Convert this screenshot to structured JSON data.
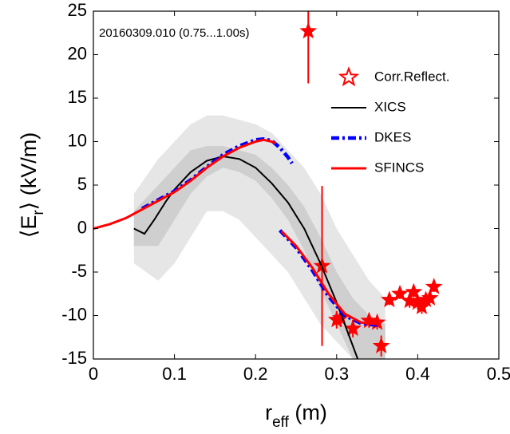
{
  "chart_data": {
    "type": "line",
    "annotation": "20160309.010 (0.75...1.00s)",
    "xlabel": [
      "r",
      "eff",
      " (m)"
    ],
    "ylabel": [
      "⟨E",
      "r",
      "⟩ (kV/m)"
    ],
    "xlim": [
      0,
      0.5
    ],
    "ylim": [
      -15,
      25
    ],
    "xticks": [
      0,
      0.1,
      0.2,
      0.3,
      0.4,
      0.5
    ],
    "yticks": [
      -15,
      -10,
      -5,
      0,
      5,
      10,
      15,
      20,
      25
    ],
    "legend": "upper right",
    "bands": [
      {
        "color": "#e6e6e6",
        "x": [
          0.05,
          0.08,
          0.1,
          0.12,
          0.14,
          0.16,
          0.18,
          0.2,
          0.22,
          0.24,
          0.26,
          0.28,
          0.3,
          0.32,
          0.34,
          0.36
        ],
        "upper": [
          4,
          8,
          10,
          12,
          13,
          13,
          12.5,
          12,
          11,
          9,
          7,
          4,
          0,
          -3,
          -6,
          -8
        ],
        "lower": [
          -4,
          -6,
          -4,
          -1,
          2,
          2,
          1,
          -1,
          -3,
          -5,
          -8,
          -11,
          -13,
          -15,
          -15,
          -15
        ]
      },
      {
        "color": "#cfcfcf",
        "x": [
          0.05,
          0.08,
          0.1,
          0.12,
          0.14,
          0.16,
          0.18,
          0.2,
          0.22,
          0.24,
          0.26,
          0.28,
          0.3,
          0.32,
          0.34,
          0.36
        ],
        "upper": [
          2,
          5,
          7,
          9,
          9.5,
          9.5,
          9,
          8.5,
          7,
          5,
          2.5,
          -1,
          -5,
          -8,
          -10,
          -11
        ],
        "lower": [
          -2,
          -2,
          1,
          4,
          6,
          7,
          6.5,
          5.5,
          3.5,
          1,
          -2.5,
          -7,
          -11,
          -15,
          -15,
          -15
        ]
      }
    ],
    "series": [
      {
        "name": "Corr.Reflect.",
        "color": "#ff0000",
        "marker": "star",
        "x": [
          0.265,
          0.282,
          0.3,
          0.305,
          0.32,
          0.34,
          0.35,
          0.355,
          0.365,
          0.378,
          0.39,
          0.395,
          0.4,
          0.405,
          0.41,
          0.415,
          0.42
        ],
        "values": [
          22.7,
          -4.3,
          -10.5,
          -10.3,
          -11.5,
          -10.6,
          -10.8,
          -13.5,
          -8.2,
          -7.5,
          -8.3,
          -7.3,
          -8.5,
          -9,
          -8.2,
          -8,
          -6.7
        ],
        "errors": [
          6,
          9.2,
          1,
          1,
          1,
          0.8,
          0.8,
          1.2,
          0.6,
          0.6,
          0.8,
          0.6,
          0.8,
          0.8,
          0.6,
          0.6,
          0.6
        ]
      },
      {
        "name": "XICS",
        "color": "#000000",
        "width": 2,
        "x": [
          0.05,
          0.063,
          0.075,
          0.09,
          0.1,
          0.12,
          0.14,
          0.16,
          0.18,
          0.2,
          0.22,
          0.24,
          0.26,
          0.28,
          0.3,
          0.31,
          0.32,
          0.326
        ],
        "values": [
          0,
          -0.6,
          1,
          3.2,
          4.5,
          6.5,
          7.8,
          8.3,
          8,
          7,
          5.2,
          3,
          0,
          -4,
          -8.5,
          -11,
          -13.5,
          -15
        ]
      },
      {
        "name": "DKES",
        "color": "#0000ff",
        "width": 4.5,
        "dash": "10 4 3 4",
        "x": [
          0.06,
          0.08,
          0.1,
          0.12,
          0.14,
          0.16,
          0.18,
          0.2,
          0.21,
          0.22,
          0.23,
          0.24,
          0.245,
          null,
          0.23,
          0.25,
          0.27,
          0.29,
          0.31,
          0.33,
          0.35
        ],
        "values": [
          2.3,
          3.3,
          4.3,
          5.6,
          7.1,
          8.5,
          9.5,
          10.2,
          10.3,
          10.1,
          9.3,
          8.2,
          7.5,
          null,
          -0.2,
          -2.2,
          -4.8,
          -7.8,
          -10,
          -10.9,
          -11.1
        ]
      },
      {
        "name": "SFINCS",
        "color": "#ff0000",
        "width": 3,
        "x": [
          0,
          0.02,
          0.04,
          0.06,
          0.08,
          0.1,
          0.12,
          0.14,
          0.16,
          0.18,
          0.2,
          0.21,
          0.22,
          0.225,
          null,
          0.232,
          0.25,
          0.27,
          0.29,
          0.31,
          0.33,
          0.35
        ],
        "values": [
          0,
          0.5,
          1.2,
          2.2,
          3.2,
          4.2,
          5.5,
          7,
          8.3,
          9.3,
          10,
          10.2,
          10,
          9.8,
          null,
          -0.3,
          -2,
          -4.5,
          -7.5,
          -9.8,
          -10.8,
          -11
        ]
      }
    ]
  }
}
